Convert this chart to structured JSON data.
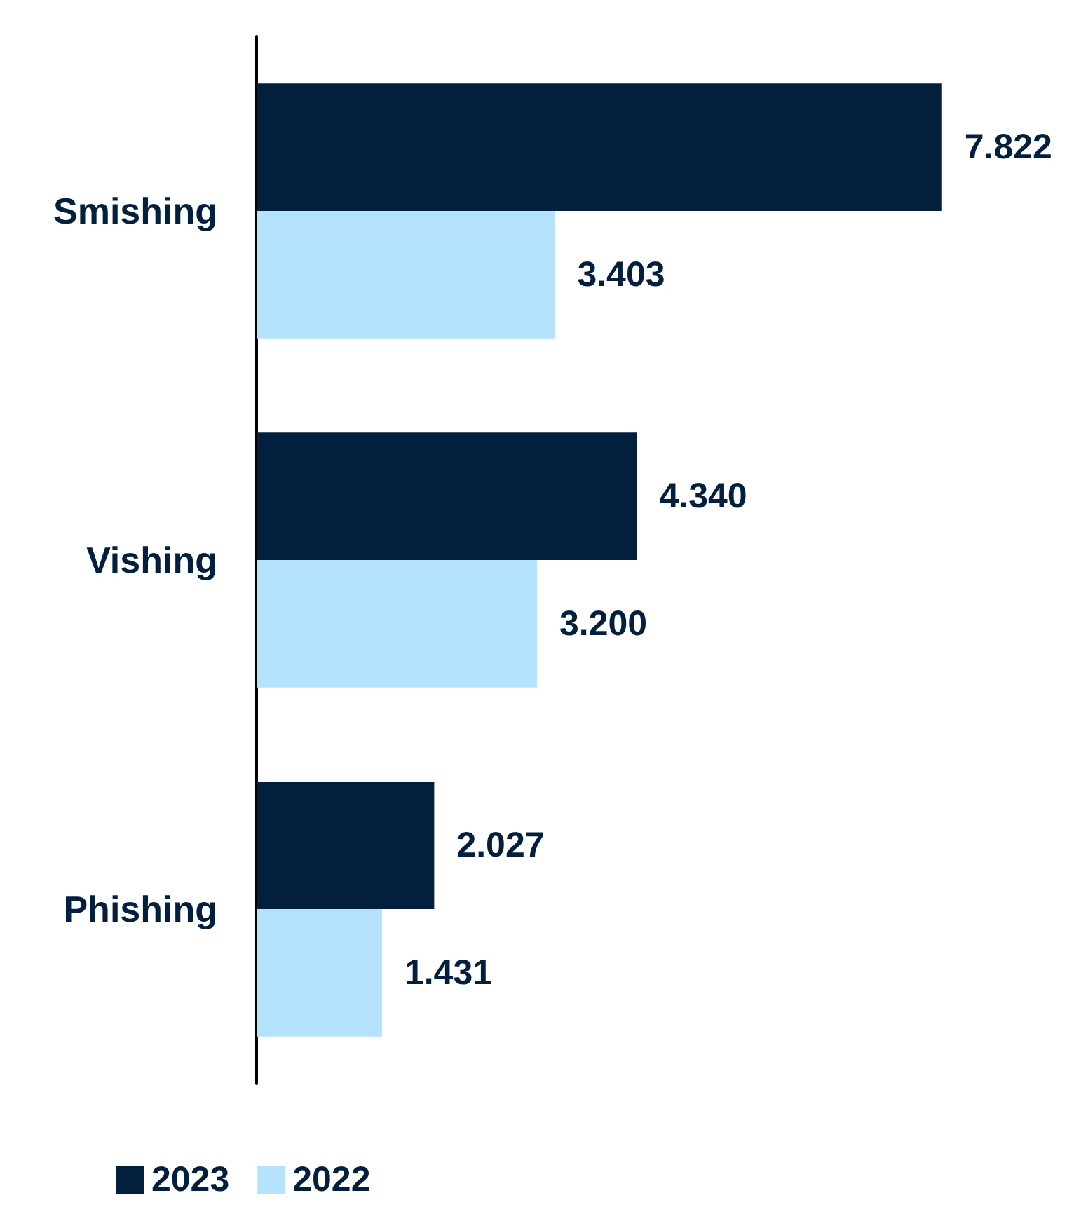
{
  "chart_data": {
    "type": "bar",
    "orientation": "horizontal",
    "categories": [
      "Smishing",
      "Vishing",
      "Phishing"
    ],
    "series": [
      {
        "name": "2023",
        "color": "#021f3d",
        "values": [
          7.822,
          4.34,
          2.027
        ],
        "value_labels": [
          "7.822",
          "4.340",
          "2.027"
        ]
      },
      {
        "name": "2022",
        "color": "#b5e2fc",
        "values": [
          3.403,
          3.2,
          1.431
        ],
        "value_labels": [
          "3.403",
          "3.200",
          "1.431"
        ]
      }
    ],
    "legend": "bottom left"
  }
}
